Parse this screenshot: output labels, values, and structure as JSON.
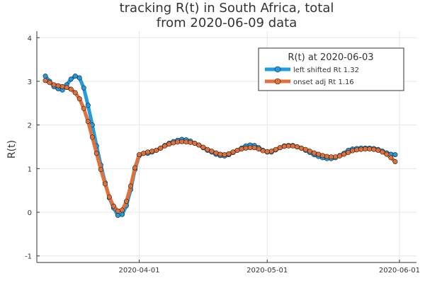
{
  "chart_data": {
    "type": "line",
    "title_line1": "tracking R(t) in South Africa, total",
    "title_line2": "from 2020-06-09 data",
    "xlabel": "",
    "ylabel": "R(t)",
    "ylim": [
      -1.15,
      4.15
    ],
    "xlim": [
      "2020-03-08",
      "2020-06-05"
    ],
    "y_ticks": [
      -1,
      0,
      1,
      2,
      3,
      4
    ],
    "x_ticks": [
      "2020-04-01",
      "2020-05-01",
      "2020-06-01"
    ],
    "grid": true,
    "legend": {
      "title": "R(t) at 2020-06-03",
      "placement": "top-right",
      "entries": [
        "left shifted Rt 1.32",
        "onset adj Rt 1.16"
      ]
    },
    "series": [
      {
        "name": "left shifted Rt 1.32",
        "color": "#1f9be0",
        "start_date": "2020-03-10",
        "values": [
          3.12,
          3.0,
          2.88,
          2.83,
          2.8,
          2.92,
          3.05,
          3.12,
          3.08,
          2.85,
          2.45,
          2.0,
          1.52,
          1.08,
          0.68,
          0.33,
          0.1,
          -0.07,
          -0.05,
          0.15,
          0.52,
          0.98,
          1.3,
          1.35,
          1.35,
          1.38,
          1.42,
          1.47,
          1.53,
          1.58,
          1.62,
          1.65,
          1.67,
          1.66,
          1.63,
          1.58,
          1.54,
          1.48,
          1.42,
          1.38,
          1.33,
          1.3,
          1.29,
          1.32,
          1.37,
          1.42,
          1.47,
          1.52,
          1.54,
          1.53,
          1.48,
          1.42,
          1.38,
          1.38,
          1.43,
          1.48,
          1.52,
          1.53,
          1.53,
          1.5,
          1.47,
          1.42,
          1.37,
          1.32,
          1.28,
          1.25,
          1.23,
          1.23,
          1.25,
          1.3,
          1.35,
          1.42,
          1.45,
          1.46,
          1.47,
          1.47,
          1.47,
          1.46,
          1.44,
          1.4,
          1.36,
          1.33,
          1.32
        ]
      },
      {
        "name": "onset adj Rt 1.16",
        "color": "#e2703a",
        "start_date": "2020-03-10",
        "values": [
          3.02,
          2.97,
          2.92,
          2.9,
          2.88,
          2.86,
          2.82,
          2.74,
          2.6,
          2.38,
          2.08,
          1.72,
          1.35,
          0.98,
          0.65,
          0.35,
          0.14,
          0.03,
          0.05,
          0.25,
          0.6,
          1.02,
          1.32,
          1.35,
          1.38,
          1.4,
          1.42,
          1.47,
          1.52,
          1.56,
          1.59,
          1.61,
          1.62,
          1.61,
          1.6,
          1.58,
          1.54,
          1.49,
          1.44,
          1.4,
          1.36,
          1.33,
          1.32,
          1.34,
          1.38,
          1.42,
          1.45,
          1.47,
          1.48,
          1.48,
          1.45,
          1.41,
          1.39,
          1.4,
          1.44,
          1.48,
          1.51,
          1.52,
          1.52,
          1.5,
          1.47,
          1.44,
          1.4,
          1.36,
          1.33,
          1.3,
          1.28,
          1.27,
          1.27,
          1.29,
          1.33,
          1.37,
          1.41,
          1.43,
          1.44,
          1.45,
          1.45,
          1.44,
          1.42,
          1.38,
          1.33,
          1.25,
          1.16
        ]
      }
    ]
  }
}
